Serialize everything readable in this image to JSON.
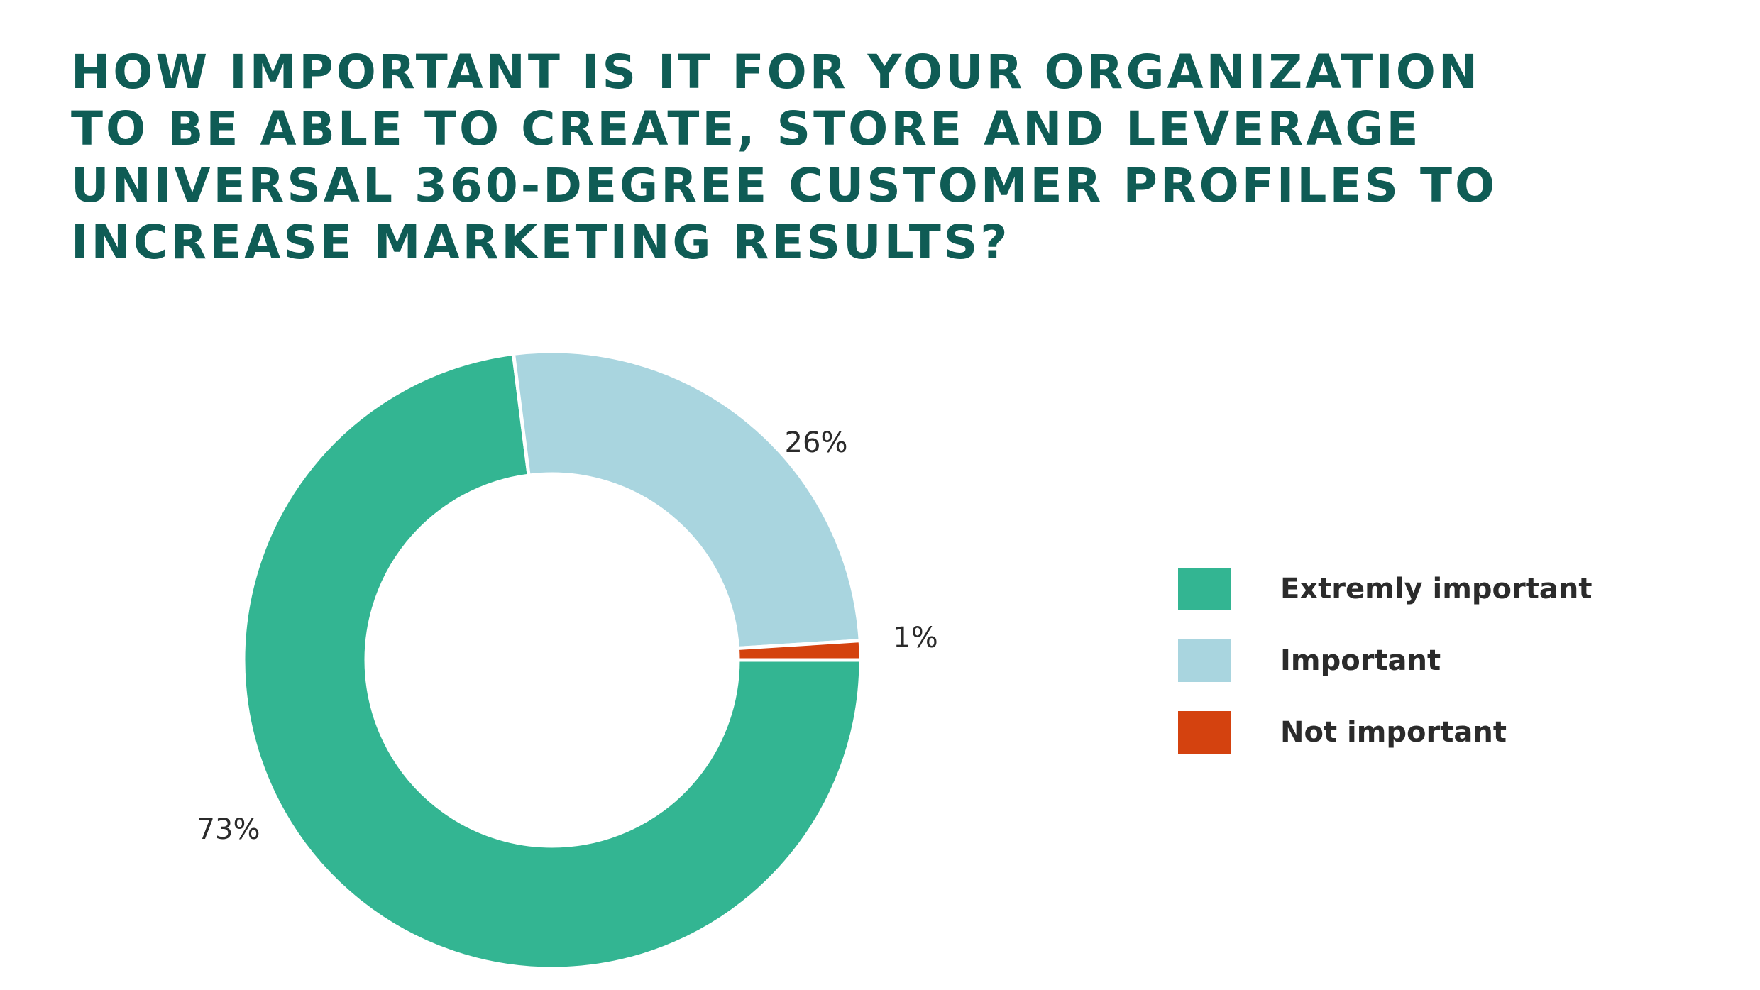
{
  "title_lines": [
    "HOW IMPORTANT IS IT FOR YOUR ORGANIZATION",
    "TO BE ABLE TO CREATE, STORE AND LEVERAGE",
    "UNIVERSAL 360-DEGREE CUSTOMER PROFILES TO",
    "INCREASE MARKETING RESULTS?"
  ],
  "chart_data": {
    "type": "pie",
    "donut": true,
    "title": "HOW IMPORTANT IS IT FOR YOUR ORGANIZATION TO BE ABLE TO CREATE, STORE AND LEVERAGE UNIVERSAL 360-DEGREE CUSTOMER PROFILES TO INCREASE MARKETING RESULTS?",
    "categories": [
      "Extremly important",
      "Important",
      "Not important"
    ],
    "values": [
      73,
      26,
      1
    ],
    "data_labels": [
      "73%",
      "26%",
      "1%"
    ],
    "colors": [
      "#33b592",
      "#a9d5df",
      "#d4420f"
    ],
    "legend_position": "right"
  }
}
